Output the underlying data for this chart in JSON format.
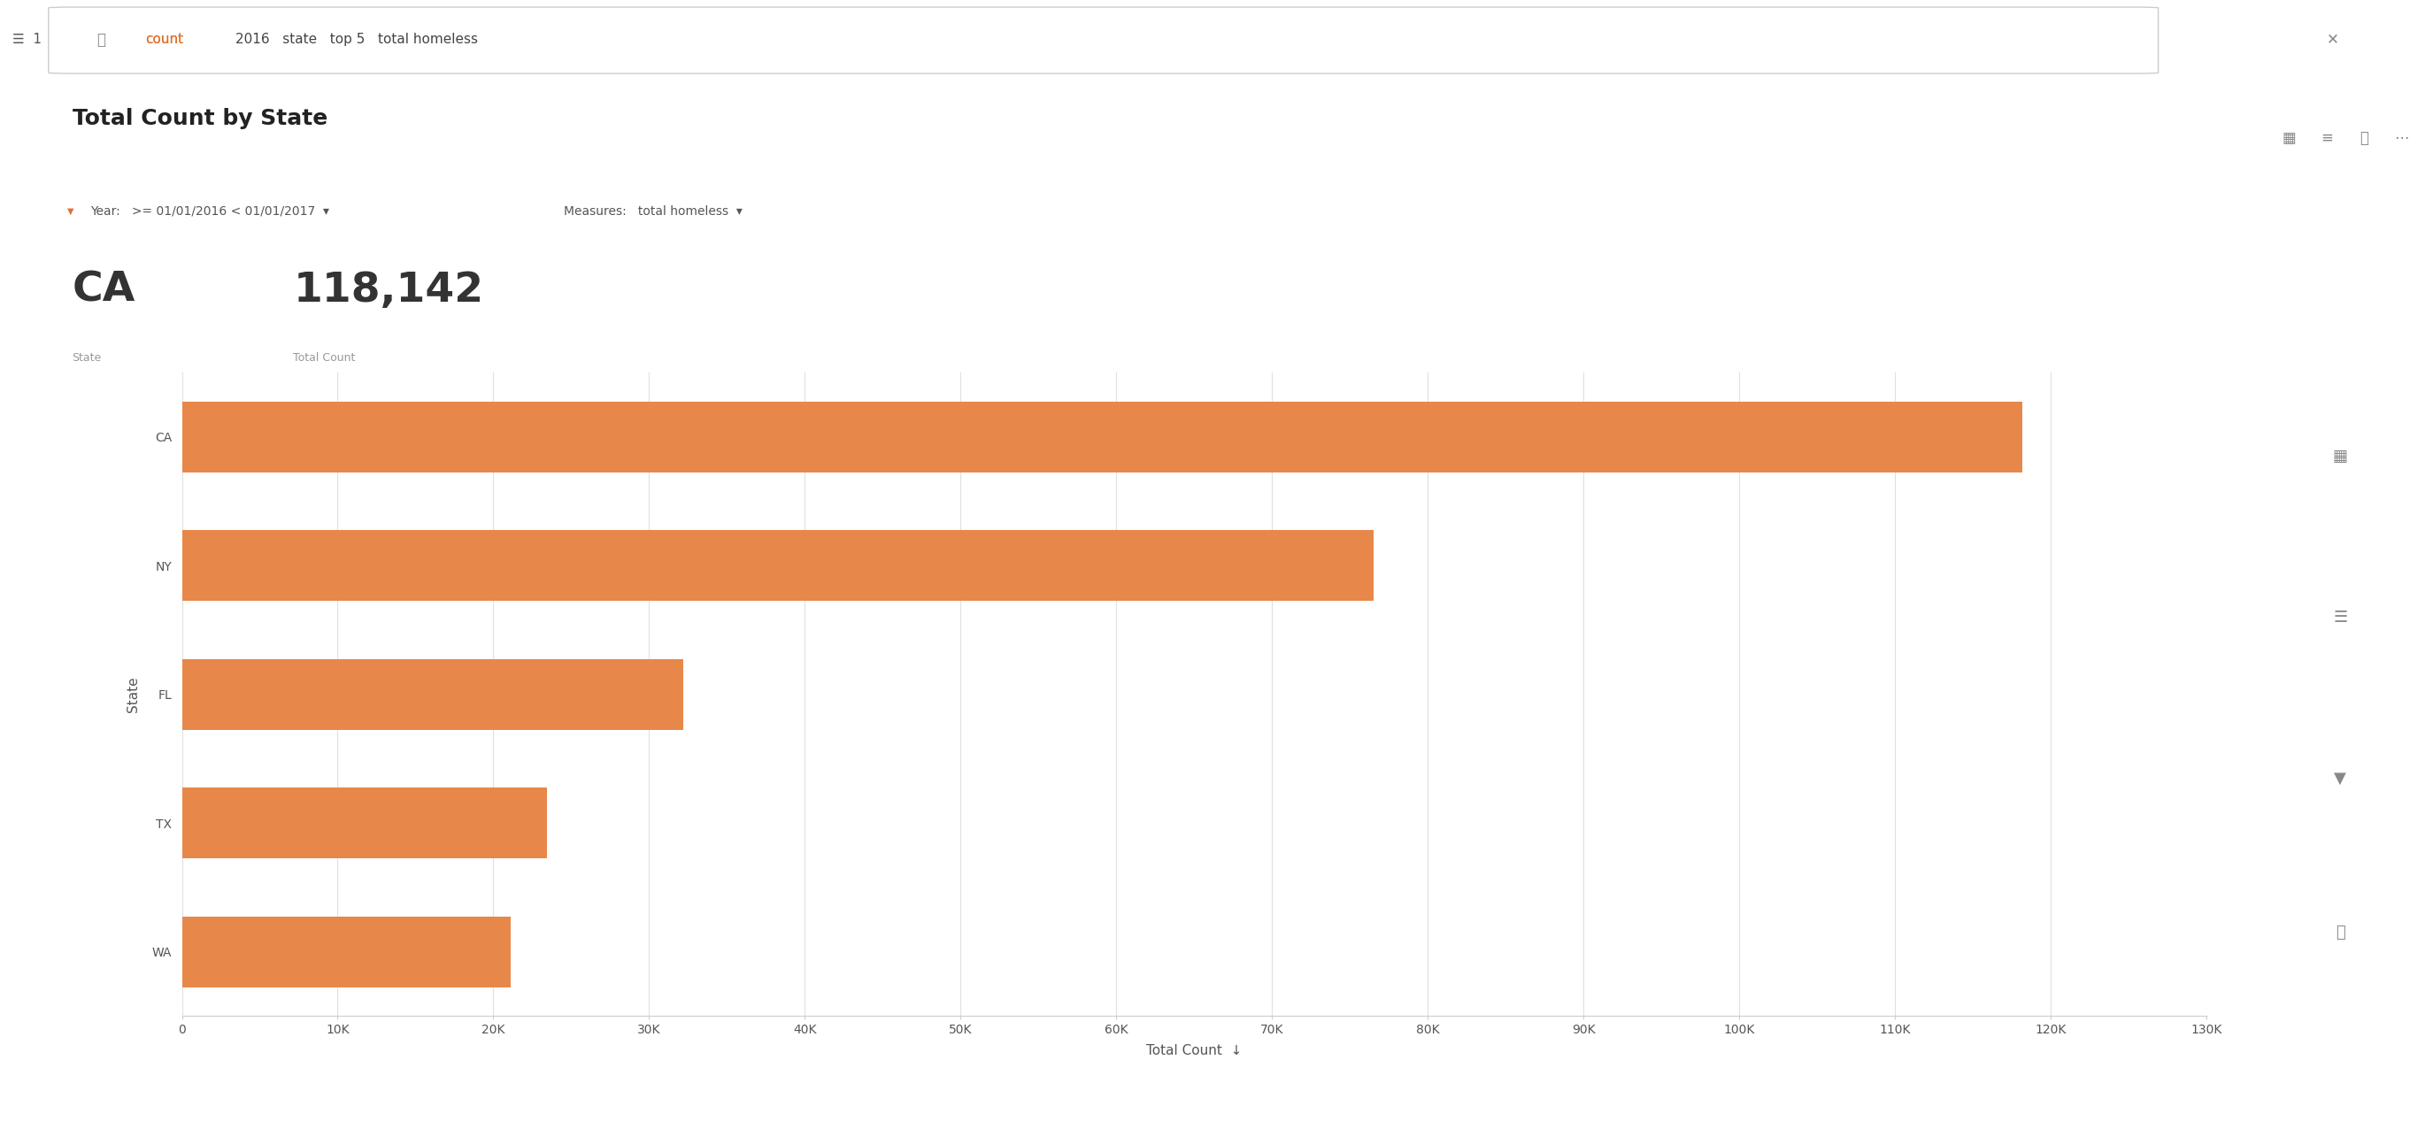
{
  "title": "Total Count by State",
  "subtitle_state": "CA",
  "subtitle_label_state": "State",
  "subtitle_value": "118,142",
  "subtitle_label_value": "Total Count",
  "filter_text": ">= 01/01/2016 < 01/01/2017",
  "measures_text": "total homeless",
  "states": [
    "CA",
    "NY",
    "FL",
    "TX",
    "WA"
  ],
  "values": [
    118142,
    76501,
    32190,
    23428,
    21112
  ],
  "bar_color": "#E8874A",
  "bar_height": 0.55,
  "xlabel": "Total Count",
  "ylabel": "State",
  "xlim": [
    0,
    130000
  ],
  "xticks": [
    0,
    10000,
    20000,
    30000,
    40000,
    50000,
    60000,
    70000,
    80000,
    90000,
    100000,
    110000,
    120000,
    130000
  ],
  "xtick_labels": [
    "0",
    "10K",
    "20K",
    "30K",
    "40K",
    "50K",
    "60K",
    "70K",
    "80K",
    "90K",
    "100K",
    "110K",
    "120K",
    "130K"
  ],
  "background_color": "#FFFFFF",
  "plot_background": "#FFFFFF",
  "grid_color": "#E0E0E0",
  "title_fontsize": 18,
  "axis_label_fontsize": 11,
  "tick_fontsize": 10
}
